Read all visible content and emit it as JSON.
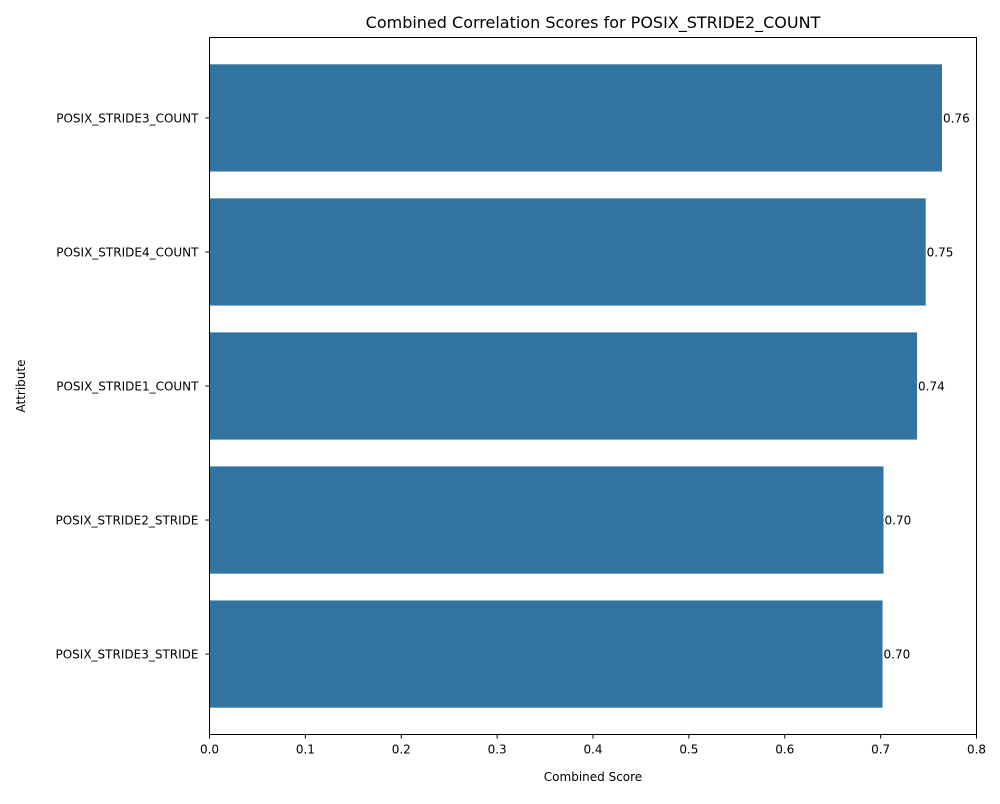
{
  "chart_data": {
    "type": "bar",
    "orientation": "horizontal",
    "title": "Combined Correlation Scores for POSIX_STRIDE2_COUNT",
    "xlabel": "Combined Score",
    "ylabel": "Attribute",
    "categories": [
      "POSIX_STRIDE3_COUNT",
      "POSIX_STRIDE4_COUNT",
      "POSIX_STRIDE1_COUNT",
      "POSIX_STRIDE2_STRIDE",
      "POSIX_STRIDE3_STRIDE"
    ],
    "values": [
      0.764,
      0.747,
      0.738,
      0.703,
      0.702
    ],
    "data_labels": [
      "0.76",
      "0.75",
      "0.74",
      "0.70",
      "0.70"
    ],
    "xlim": [
      0,
      0.8
    ],
    "xticks": [
      0.0,
      0.1,
      0.2,
      0.3,
      0.4,
      0.5,
      0.6,
      0.7,
      0.8
    ],
    "xtick_labels": [
      "0.0",
      "0.1",
      "0.2",
      "0.3",
      "0.4",
      "0.5",
      "0.6",
      "0.7",
      "0.8"
    ],
    "grid": false,
    "bar_color": "#3274a1"
  }
}
